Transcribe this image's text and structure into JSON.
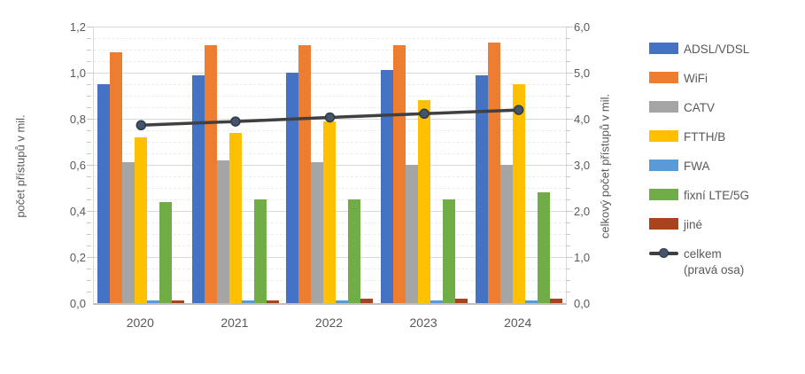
{
  "chart_data": {
    "type": "bar",
    "categories": [
      "2020",
      "2021",
      "2022",
      "2023",
      "2024"
    ],
    "series": [
      {
        "name": "ADSL/VDSL",
        "color": "#4472C4",
        "hatch": false,
        "values": [
          0.95,
          0.99,
          1.0,
          1.01,
          0.99
        ]
      },
      {
        "name": "WiFi",
        "color": "#ED7D31",
        "hatch": false,
        "values": [
          1.09,
          1.12,
          1.12,
          1.12,
          1.13
        ]
      },
      {
        "name": "CATV",
        "color": "#A5A5A5",
        "hatch": true,
        "values": [
          0.61,
          0.62,
          0.61,
          0.6,
          0.6
        ]
      },
      {
        "name": "FTTH/B",
        "color": "#FFC000",
        "hatch": false,
        "values": [
          0.72,
          0.74,
          0.79,
          0.88,
          0.95
        ]
      },
      {
        "name": "FWA",
        "color": "#5B9BD5",
        "hatch": false,
        "values": [
          0.01,
          0.01,
          0.01,
          0.01,
          0.01
        ]
      },
      {
        "name": "fixní LTE/5G",
        "color": "#70AD47",
        "hatch": false,
        "values": [
          0.44,
          0.45,
          0.45,
          0.45,
          0.48
        ]
      },
      {
        "name": "jiné",
        "color": "#A9431E",
        "hatch": false,
        "values": [
          0.01,
          0.01,
          0.02,
          0.02,
          0.02
        ]
      }
    ],
    "line_series": {
      "name": "celkem (pravá osa)",
      "axis": "right",
      "line_color": "#404040",
      "marker_fill": "#44546A",
      "marker_stroke": "#2F3B4C",
      "values": [
        3.86,
        3.94,
        4.03,
        4.11,
        4.19
      ]
    },
    "left_axis": {
      "title": "počet přístupů v mil.",
      "min": 0,
      "max": 1.2,
      "major_step": 0.2,
      "minor_step": 0.05,
      "tick_labels": [
        "0,0",
        "0,2",
        "0,4",
        "0,6",
        "0,8",
        "1,0",
        "1,2"
      ]
    },
    "right_axis": {
      "title": "celkový počet přístupů v mil.",
      "min": 0,
      "max": 6.0,
      "major_step": 1.0,
      "tick_labels": [
        "0,0",
        "1,0",
        "2,0",
        "3,0",
        "4,0",
        "5,0",
        "6,0"
      ]
    },
    "grid": {
      "major_color": "#D9D9D9",
      "minor_color": "#ECECEC",
      "baseline_color": "#BFBFBF"
    },
    "legend_position": "right",
    "legend": [
      {
        "label": "ADSL/VDSL",
        "type": "bar",
        "color": "#4472C4",
        "hatch": false
      },
      {
        "label": "WiFi",
        "type": "bar",
        "color": "#ED7D31",
        "hatch": false
      },
      {
        "label": "CATV",
        "type": "bar",
        "color": "#A5A5A5",
        "hatch": true
      },
      {
        "label": "FTTH/B",
        "type": "bar",
        "color": "#FFC000",
        "hatch": false
      },
      {
        "label": "FWA",
        "type": "bar",
        "color": "#5B9BD5",
        "hatch": false
      },
      {
        "label": "fixní LTE/5G",
        "type": "bar",
        "color": "#70AD47",
        "hatch": false
      },
      {
        "label": "jiné",
        "type": "bar",
        "color": "#A9431E",
        "hatch": false
      },
      {
        "label": "celkem",
        "label2": "(pravá osa)",
        "type": "line",
        "color": "#404040",
        "marker": "#44546A"
      }
    ]
  }
}
